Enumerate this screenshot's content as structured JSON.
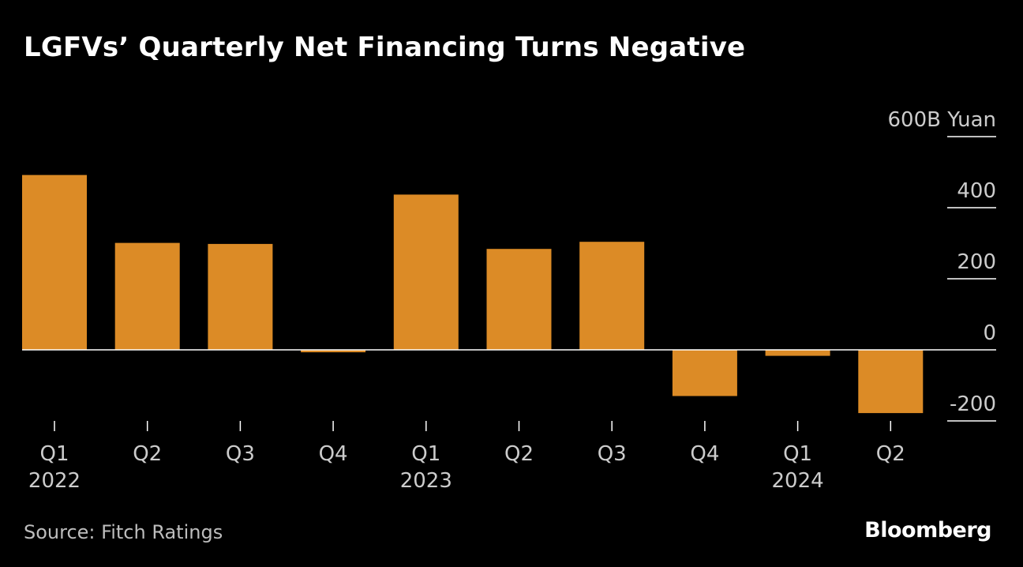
{
  "header": {
    "title": "LGFVs’ Quarterly Net Financing Turns Negative"
  },
  "footer": {
    "source": "Source: Fitch Ratings",
    "logo": "Bloomberg"
  },
  "colors": {
    "bar": "#dc8b26",
    "background": "#000000",
    "axis": "#ffffff",
    "text": "#cccccc"
  },
  "chart_data": {
    "type": "bar",
    "title": "LGFVs’ Quarterly Net Financing Turns Negative",
    "xlabel": "",
    "ylabel": "",
    "unit_label": "600B Yuan",
    "categories": [
      "Q1 2022",
      "Q2 2022",
      "Q3 2022",
      "Q4 2022",
      "Q1 2023",
      "Q2 2023",
      "Q3 2023",
      "Q4 2023",
      "Q1 2024",
      "Q2 2024"
    ],
    "x_tick_quarters": [
      "Q1",
      "Q2",
      "Q3",
      "Q4",
      "Q1",
      "Q2",
      "Q3",
      "Q4",
      "Q1",
      "Q2"
    ],
    "x_tick_years": [
      "2022",
      "",
      "",
      "",
      "2023",
      "",
      "",
      "",
      "2024",
      ""
    ],
    "values": [
      492,
      301,
      298,
      -7,
      437,
      284,
      304,
      -130,
      -17,
      -178
    ],
    "ylim": [
      -200,
      600
    ],
    "y_ticks": [
      600,
      400,
      200,
      0,
      -200
    ],
    "y_tick_labels": [
      "600B Yuan",
      "400",
      "200",
      "0",
      "-200"
    ],
    "y_axis_position": "right",
    "grid": false,
    "legend": "none"
  }
}
